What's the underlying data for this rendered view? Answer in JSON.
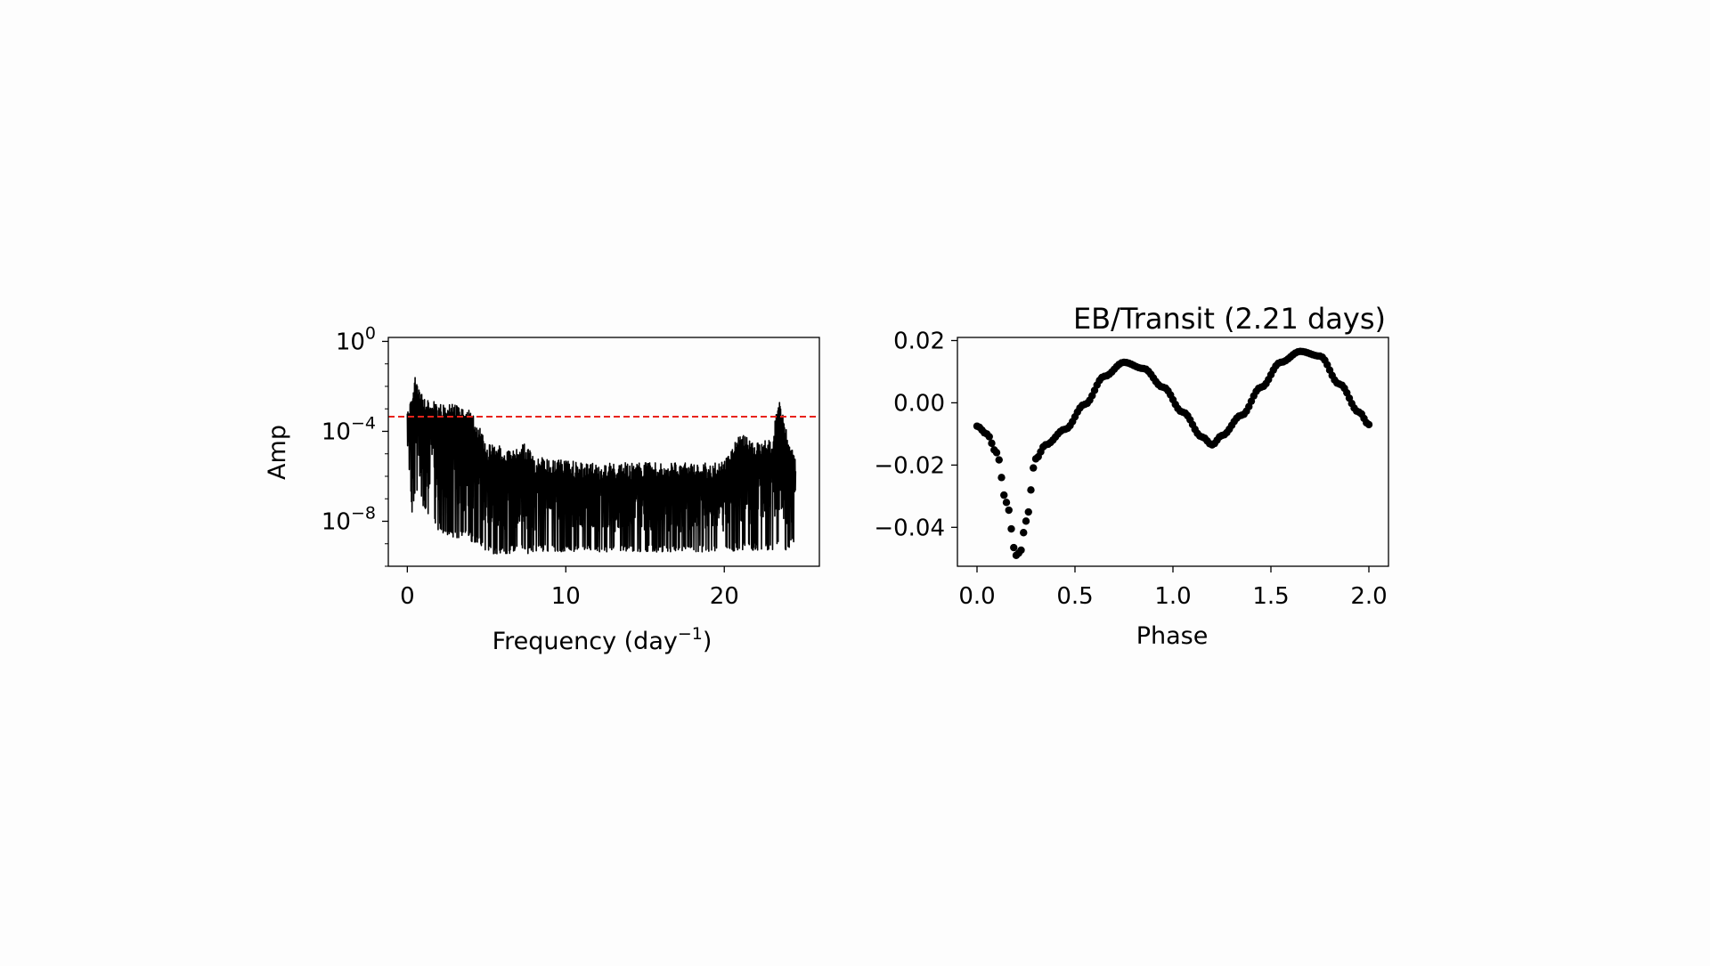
{
  "chart_data": [
    {
      "type": "line",
      "title": "",
      "xlabel": "Frequency (day",
      "xlabel_sup": "−1",
      "xlabel_suffix": ")",
      "ylabel": "Amp",
      "xlim": [
        -1.2,
        26
      ],
      "ylim": [
        1e-10,
        1.5
      ],
      "yscale": "log",
      "xticks": [
        0,
        10,
        20
      ],
      "xtick_labels": [
        "0",
        "10",
        "20"
      ],
      "yticks": [
        1,
        0.0001,
        1e-08
      ],
      "ytick_labels": [
        {
          "base": "10",
          "exp": "0"
        },
        {
          "base": "10",
          "exp": "−4"
        },
        {
          "base": "10",
          "exp": "−8"
        }
      ],
      "threshold": {
        "value": 0.00045,
        "color": "#e8221b",
        "style": "dashed"
      },
      "line_color": "#000000",
      "spectrum_envelope": {
        "f": [
          0,
          0.3,
          0.5,
          1,
          2,
          3,
          4,
          4.5,
          5,
          5.5,
          6,
          7,
          7.5,
          8,
          9,
          10,
          12,
          14,
          16,
          18,
          19.5,
          20,
          21,
          22,
          23,
          23.5,
          24,
          24.5
        ],
        "upper": [
          0.0015,
          0.003,
          0.03,
          0.003,
          0.002,
          0.0015,
          0.0008,
          0.0002,
          3e-05,
          3e-05,
          2e-05,
          2e-05,
          3e-05,
          8e-06,
          6e-06,
          5e-06,
          4e-06,
          4e-06,
          4e-06,
          4e-06,
          4e-06,
          5e-06,
          8e-05,
          3e-05,
          5e-05,
          0.004,
          8e-05,
          5e-06
        ],
        "lower": [
          3e-05,
          1e-08,
          1e-07,
          3e-08,
          2e-09,
          1e-09,
          8e-10,
          5e-10,
          3e-10,
          2e-10,
          2e-10,
          3e-10,
          2e-10,
          3e-10,
          3e-10,
          3e-10,
          3e-10,
          3e-10,
          3e-10,
          3e-10,
          3e-10,
          3e-10,
          3e-10,
          3e-10,
          3e-10,
          3e-10,
          3e-10,
          1e-09
        ]
      }
    },
    {
      "type": "scatter",
      "title": "EB/Transit (2.21 days)",
      "xlabel": "Phase",
      "ylabel": "",
      "xlim": [
        -0.1,
        2.1
      ],
      "ylim": [
        -0.0525,
        0.021
      ],
      "xticks": [
        0.0,
        0.5,
        1.0,
        1.5,
        2.0
      ],
      "xtick_labels": [
        "0.0",
        "0.5",
        "1.0",
        "1.5",
        "2.0"
      ],
      "yticks": [
        0.02,
        0.0,
        -0.02,
        -0.04
      ],
      "ytick_labels": [
        "0.02",
        "0.00",
        "−0.02",
        "−0.04"
      ],
      "marker_color": "#000000",
      "curve": {
        "x": [
          0.0,
          0.05,
          0.1,
          0.15,
          0.2,
          0.22,
          0.25,
          0.3,
          0.35,
          0.45,
          0.55,
          0.65,
          0.75,
          0.85,
          0.95,
          1.05,
          1.15,
          1.2,
          1.25,
          1.35,
          1.45,
          1.55,
          1.65,
          1.75,
          1.85,
          1.95,
          2.0
        ],
        "y": [
          -0.0075,
          -0.01,
          -0.016,
          -0.032,
          -0.049,
          -0.048,
          -0.038,
          -0.018,
          -0.0135,
          -0.0085,
          -0.0005,
          0.0085,
          0.013,
          0.011,
          0.005,
          -0.003,
          -0.011,
          -0.0135,
          -0.0105,
          -0.004,
          0.005,
          0.013,
          0.0165,
          0.015,
          0.006,
          -0.003,
          -0.007
        ]
      },
      "n_points": 160
    }
  ]
}
